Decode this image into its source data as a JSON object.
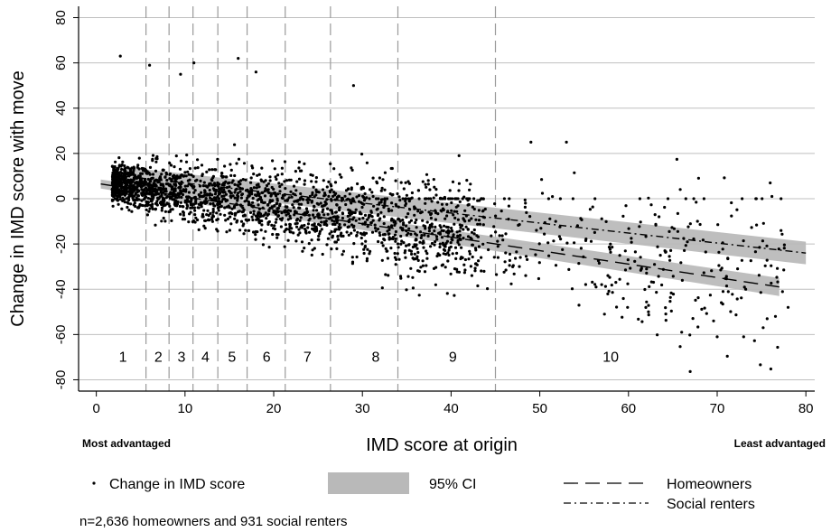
{
  "chart_data": {
    "type": "scatter",
    "title": "",
    "xlabel": "IMD score at origin",
    "ylabel": "Change in IMD score with move",
    "xlim": [
      -2,
      81
    ],
    "ylim": [
      -85,
      85
    ],
    "xticks": [
      0,
      10,
      20,
      30,
      40,
      50,
      60,
      70,
      80
    ],
    "yticks": [
      80,
      60,
      40,
      20,
      0,
      -20,
      -40,
      -60,
      -80
    ],
    "x_left_annotation": "Most advantaged",
    "x_right_annotation": "Least advantaged",
    "grid": true,
    "decile_boundaries": [
      5.6,
      8.2,
      10.9,
      13.7,
      17.0,
      21.3,
      26.4,
      34.0,
      45.0
    ],
    "decile_labels": [
      {
        "label": "1",
        "x": 3.0
      },
      {
        "label": "2",
        "x": 7.0
      },
      {
        "label": "3",
        "x": 9.6
      },
      {
        "label": "4",
        "x": 12.3
      },
      {
        "label": "5",
        "x": 15.3
      },
      {
        "label": "6",
        "x": 19.2
      },
      {
        "label": "7",
        "x": 23.8
      },
      {
        "label": "8",
        "x": 31.5
      },
      {
        "label": "9",
        "x": 40.2
      },
      {
        "label": "10",
        "x": 58.0
      }
    ],
    "decile_label_y": -70,
    "series": [
      {
        "name": "Homeowners",
        "type": "line",
        "style": "dashed",
        "x": [
          0.5,
          77
        ],
        "y": [
          6.5,
          -39
        ],
        "ci": {
          "x": [
            0.5,
            77
          ],
          "lower": [
            4.5,
            -43
          ],
          "upper": [
            8.5,
            -35
          ]
        }
      },
      {
        "name": "Social renters",
        "type": "line",
        "style": "dashdot",
        "x": [
          3,
          80
        ],
        "y": [
          10,
          -24
        ],
        "ci": {
          "x": [
            3,
            80
          ],
          "lower": [
            6,
            -29
          ],
          "upper": [
            14,
            -19
          ]
        }
      },
      {
        "name": "Change in IMD score",
        "type": "scatter",
        "approx_points": 3567,
        "note": "dense point cloud around the regression lines; highest point ~(2.7, 63), lowest ~(70, -61)"
      }
    ],
    "legend": {
      "placement": "bottom",
      "items": [
        {
          "label": "Change in IMD score",
          "symbol": "dot"
        },
        {
          "label": "95% CI",
          "symbol": "band"
        },
        {
          "label": "Homeowners",
          "symbol": "dashed"
        },
        {
          "label": "Social renters",
          "symbol": "dashdot"
        }
      ]
    },
    "footnote": "n=2,636 homeowners and 931 social renters",
    "colors": {
      "points": "#000000",
      "ci_band": "#b9b9b9",
      "gridline": "#bfbfbf",
      "decile_line": "#9a9a9a"
    }
  }
}
